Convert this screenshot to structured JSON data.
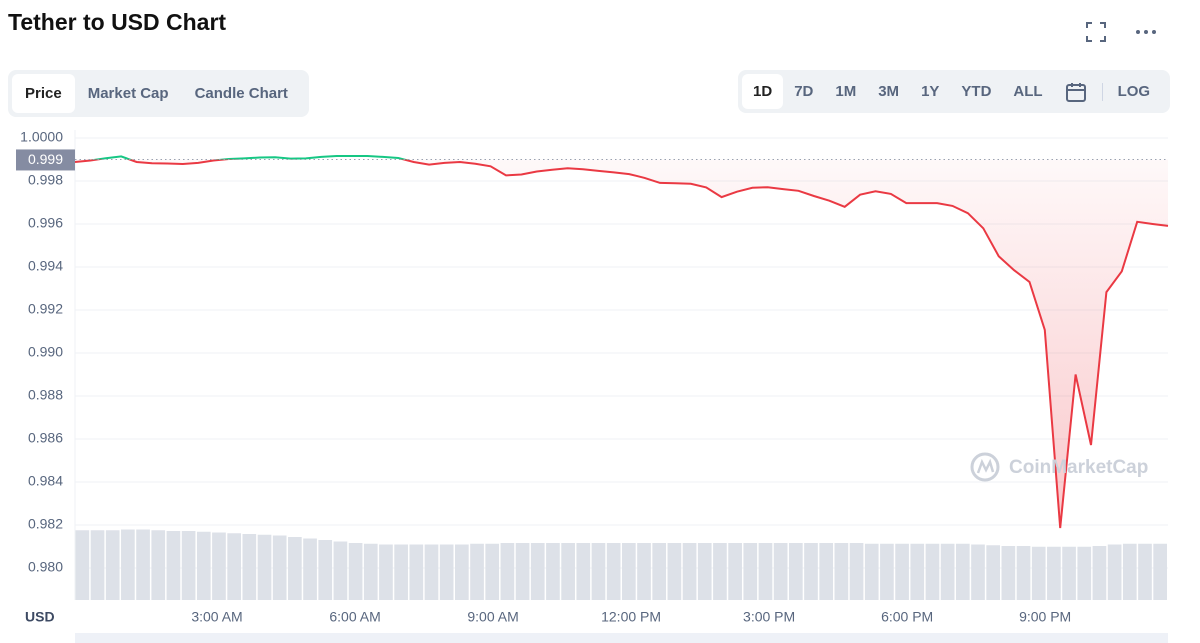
{
  "title": "Tether to USD Chart",
  "tabs": [
    "Price",
    "Market Cap",
    "Candle Chart"
  ],
  "ranges": [
    "1D",
    "7D",
    "1M",
    "3M",
    "1Y",
    "YTD",
    "ALL"
  ],
  "log_label": "LOG",
  "chart_data": {
    "type": "line",
    "currency": "USD",
    "watermark": "CoinMarketCap",
    "reference": 0.999,
    "up_color": "#16c784",
    "down_color": "#ea3943",
    "volume_color": "#dde1e8",
    "grid": true,
    "ylim": [
      0.97851,
      1.00037
    ],
    "yticks": [
      {
        "value": 1,
        "label": "1.0000"
      },
      0.998,
      0.996,
      0.994,
      0.992,
      {
        "value": 0.99,
        "label": "0.990"
      },
      0.988,
      0.986,
      0.984,
      0.982,
      {
        "value": 0.98,
        "label": "0.980"
      }
    ],
    "xlim": [
      -0.087,
      23.67
    ],
    "xticks": [
      {
        "value": 3,
        "label": "3:00 AM"
      },
      {
        "value": 6,
        "label": "6:00 AM"
      },
      {
        "value": 9,
        "label": "9:00 AM"
      },
      {
        "value": 12,
        "label": "12:00 PM"
      },
      {
        "value": 15,
        "label": "3:00 PM"
      },
      {
        "value": 18,
        "label": "6:00 PM"
      },
      {
        "value": 21,
        "label": "9:00 PM"
      }
    ],
    "values": [
      0.99888,
      0.99895,
      0.99906,
      0.99914,
      0.99888,
      0.99882,
      0.99881,
      0.99879,
      0.99884,
      0.99895,
      0.99902,
      0.99905,
      0.99909,
      0.9991,
      0.99904,
      0.99905,
      0.99912,
      0.99916,
      0.99916,
      0.99916,
      0.99912,
      0.99907,
      0.99888,
      0.99876,
      0.99884,
      0.99888,
      0.9988,
      0.99868,
      0.99826,
      0.9983,
      0.99844,
      0.99852,
      0.99859,
      0.99854,
      0.99847,
      0.9984,
      0.99832,
      0.99814,
      0.99791,
      0.99789,
      0.99787,
      0.9977,
      0.99725,
      0.9975,
      0.99768,
      0.99771,
      0.99762,
      0.99754,
      0.9973,
      0.99708,
      0.9968,
      0.99736,
      0.99752,
      0.9974,
      0.99697,
      0.99697,
      0.99697,
      0.99684,
      0.9965,
      0.9958,
      0.9945,
      0.99385,
      0.9933,
      0.99107,
      0.98186,
      0.989,
      0.98572,
      0.99283,
      0.9938,
      0.9961,
      0.996,
      0.99591
    ],
    "volume_lim": [
      0,
      100
    ],
    "volume": [
      93,
      93,
      93,
      94,
      94,
      93,
      92,
      92,
      91,
      90,
      89,
      88,
      87,
      86,
      84,
      82,
      80,
      78,
      76,
      75,
      74,
      74,
      74,
      74,
      74,
      74,
      75,
      75,
      76,
      76,
      76,
      76,
      76,
      76,
      76,
      76,
      76,
      76,
      76,
      76,
      76,
      76,
      76,
      76,
      76,
      76,
      76,
      76,
      76,
      76,
      76,
      76,
      75,
      75,
      75,
      75,
      75,
      75,
      75,
      74,
      73,
      72,
      72,
      71,
      71,
      71,
      71,
      72,
      74,
      75,
      75,
      75
    ]
  }
}
